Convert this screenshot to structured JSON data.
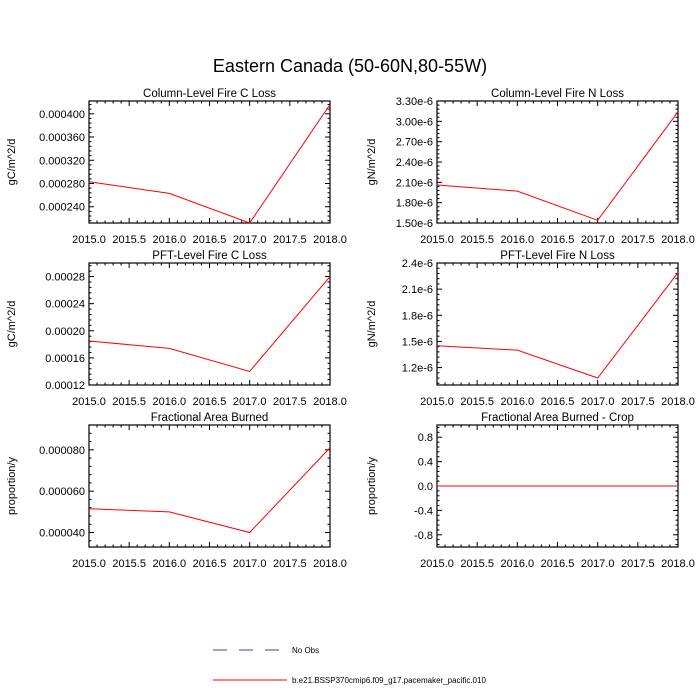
{
  "title": "Eastern Canada (50-60N,80-55W)",
  "colors": {
    "series": "#ff0000",
    "obs": "#4b3aa6",
    "axis": "#000000"
  },
  "legend": {
    "placement": "bottom-center",
    "obs_label": "No Obs",
    "model_label": "b.e21.BSSP370cmip6.f09_g17.pacemaker_pacific.010"
  },
  "chart_data": [
    {
      "type": "line",
      "title": "Column-Level Fire C Loss",
      "ylabel": "gC/m^2/d",
      "x": [
        2015,
        2016,
        2017,
        2018
      ],
      "xlim": [
        2015.0,
        2018.0
      ],
      "xticks": [
        2015.0,
        2015.5,
        2016.0,
        2016.5,
        2017.0,
        2017.5,
        2018.0
      ],
      "xtick_labels": [
        "2015.0",
        "2015.5",
        "2016.0",
        "2016.5",
        "2017.0",
        "2017.5",
        "2018.0"
      ],
      "ylim": [
        0.000212,
        0.000422
      ],
      "yticks": [
        0.00024,
        0.00028,
        0.00032,
        0.00036,
        0.0004
      ],
      "ytick_labels": [
        "0.000240",
        "0.000280",
        "0.000320",
        "0.000360",
        "0.000400"
      ],
      "series": [
        {
          "values": [
            0.000283,
            0.000263,
            0.000212,
            0.000416
          ]
        }
      ]
    },
    {
      "type": "line",
      "title": "Column-Level Fire N Loss",
      "ylabel": "gN/m^2/d",
      "x": [
        2015,
        2016,
        2017,
        2018
      ],
      "xlim": [
        2015.0,
        2018.0
      ],
      "xticks": [
        2015.0,
        2015.5,
        2016.0,
        2016.5,
        2017.0,
        2017.5,
        2018.0
      ],
      "xtick_labels": [
        "2015.0",
        "2015.5",
        "2016.0",
        "2016.5",
        "2017.0",
        "2017.5",
        "2018.0"
      ],
      "ylim": [
        1.5e-06,
        3.3e-06
      ],
      "yticks": [
        1.5e-06,
        1.8e-06,
        2.1e-06,
        2.4e-06,
        2.7e-06,
        3e-06,
        3.3e-06
      ],
      "ytick_labels": [
        "1.50e-6",
        "1.80e-6",
        "2.10e-6",
        "2.40e-6",
        "2.70e-6",
        "3.00e-6",
        "3.30e-6"
      ],
      "series": [
        {
          "values": [
            2.06e-06,
            1.97e-06,
            1.54e-06,
            3.14e-06
          ]
        }
      ]
    },
    {
      "type": "line",
      "title": "PFT-Level Fire C Loss",
      "ylabel": "gC/m^2/d",
      "x": [
        2015,
        2016,
        2017,
        2018
      ],
      "xlim": [
        2015.0,
        2018.0
      ],
      "xticks": [
        2015.0,
        2015.5,
        2016.0,
        2016.5,
        2017.0,
        2017.5,
        2018.0
      ],
      "xtick_labels": [
        "2015.0",
        "2015.5",
        "2016.0",
        "2016.5",
        "2017.0",
        "2017.5",
        "2018.0"
      ],
      "ylim": [
        0.00012,
        0.0003
      ],
      "yticks": [
        0.00012,
        0.00016,
        0.0002,
        0.00024,
        0.00028
      ],
      "ytick_labels": [
        "0.00012",
        "0.00016",
        "0.00020",
        "0.00024",
        "0.00028"
      ],
      "series": [
        {
          "values": [
            0.000185,
            0.000174,
            0.00014,
            0.00028
          ]
        }
      ]
    },
    {
      "type": "line",
      "title": "PFT-Level Fire N Loss",
      "ylabel": "gN/m^2/d",
      "x": [
        2015,
        2016,
        2017,
        2018
      ],
      "xlim": [
        2015.0,
        2018.0
      ],
      "xticks": [
        2015.0,
        2015.5,
        2016.0,
        2016.5,
        2017.0,
        2017.5,
        2018.0
      ],
      "xtick_labels": [
        "2015.0",
        "2015.5",
        "2016.0",
        "2016.5",
        "2017.0",
        "2017.5",
        "2018.0"
      ],
      "ylim": [
        1e-06,
        2.4e-06
      ],
      "yticks": [
        1.2e-06,
        1.5e-06,
        1.8e-06,
        2.1e-06,
        2.4e-06
      ],
      "ytick_labels": [
        "1.2e-6",
        "1.5e-6",
        "1.8e-6",
        "2.1e-6",
        "2.4e-6"
      ],
      "series": [
        {
          "values": [
            1.45e-06,
            1.4e-06,
            1.08e-06,
            2.29e-06
          ]
        }
      ]
    },
    {
      "type": "line",
      "title": "Fractional Area Burned",
      "ylabel": "proportion/y",
      "x": [
        2015,
        2016,
        2017,
        2018
      ],
      "xlim": [
        2015.0,
        2018.0
      ],
      "xticks": [
        2015.0,
        2015.5,
        2016.0,
        2016.5,
        2017.0,
        2017.5,
        2018.0
      ],
      "xtick_labels": [
        "2015.0",
        "2015.5",
        "2016.0",
        "2016.5",
        "2017.0",
        "2017.5",
        "2018.0"
      ],
      "ylim": [
        3.3e-05,
        9.2e-05
      ],
      "yticks": [
        4e-05,
        6e-05,
        8e-05
      ],
      "ytick_labels": [
        "0.000040",
        "0.000060",
        "0.000080"
      ],
      "series": [
        {
          "values": [
            5.15e-05,
            5e-05,
            4e-05,
            8.1e-05
          ]
        }
      ]
    },
    {
      "type": "line",
      "title": "Fractional Area Burned - Crop",
      "ylabel": "proportion/y",
      "x": [
        2015,
        2016,
        2017,
        2018
      ],
      "xlim": [
        2015.0,
        2018.0
      ],
      "xticks": [
        2015.0,
        2015.5,
        2016.0,
        2016.5,
        2017.0,
        2017.5,
        2018.0
      ],
      "xtick_labels": [
        "2015.0",
        "2015.5",
        "2016.0",
        "2016.5",
        "2017.0",
        "2017.5",
        "2018.0"
      ],
      "ylim": [
        -1.0,
        1.0
      ],
      "yticks": [
        -0.8,
        -0.4,
        0.0,
        0.4,
        0.8
      ],
      "ytick_labels": [
        "-0.8",
        "-0.4",
        "0.0",
        "0.4",
        "0.8"
      ],
      "series": [
        {
          "values": [
            0,
            0,
            0,
            0
          ]
        }
      ]
    }
  ]
}
